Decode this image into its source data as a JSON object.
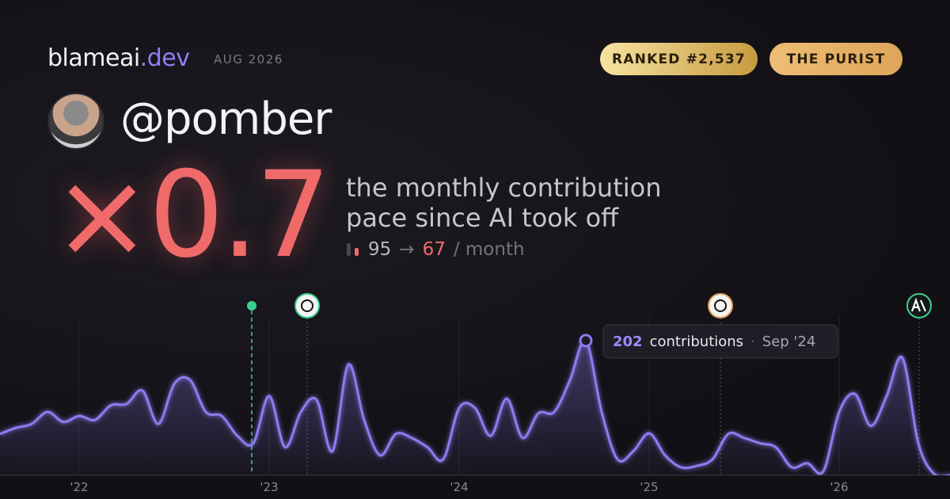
{
  "header": {
    "brand": "blameai",
    "brand_suffix": ".dev",
    "period": "AUG 2026",
    "badges": [
      "RANKED #2,537",
      "THE PURIST"
    ]
  },
  "profile": {
    "handle": "@pomber"
  },
  "headline": {
    "multiplier": "×0.7",
    "description": [
      "the monthly contribution",
      "pace since AI took off"
    ],
    "before": "95",
    "arrow": "→",
    "after": "67",
    "unit": "/ month"
  },
  "chart_data": {
    "type": "area",
    "categories": [
      null,
      null,
      null,
      null,
      null,
      "'22",
      null,
      null,
      null,
      null,
      null,
      null,
      null,
      null,
      null,
      null,
      null,
      "'23",
      null,
      null,
      null,
      null,
      null,
      null,
      null,
      null,
      null,
      null,
      null,
      "'24",
      null,
      null,
      null,
      null,
      null,
      null,
      null,
      null,
      null,
      null,
      null,
      "'25",
      null,
      null,
      null,
      null,
      null,
      null,
      null,
      null,
      null,
      null,
      null,
      "'26",
      null,
      null,
      null,
      null,
      null,
      null,
      null
    ],
    "series": [
      {
        "name": "contributions",
        "color": "#8b7cf0",
        "values": [
          62,
          71,
          77,
          95,
          80,
          89,
          83,
          105,
          107,
          127,
          77,
          137,
          143,
          95,
          89,
          59,
          48,
          119,
          42,
          95,
          113,
          36,
          166,
          83,
          30,
          62,
          56,
          42,
          24,
          101,
          101,
          59,
          115,
          56,
          93,
          95,
          143,
          202,
          95,
          24,
          36,
          63,
          30,
          12,
          14,
          24,
          62,
          56,
          48,
          42,
          12,
          18,
          6,
          95,
          122,
          74,
          119,
          176,
          48,
          2,
          0
        ]
      }
    ],
    "ylim": [
      0,
      240
    ],
    "tooltip": {
      "value": 202,
      "text": "contributions",
      "date": "Sep '24"
    }
  }
}
